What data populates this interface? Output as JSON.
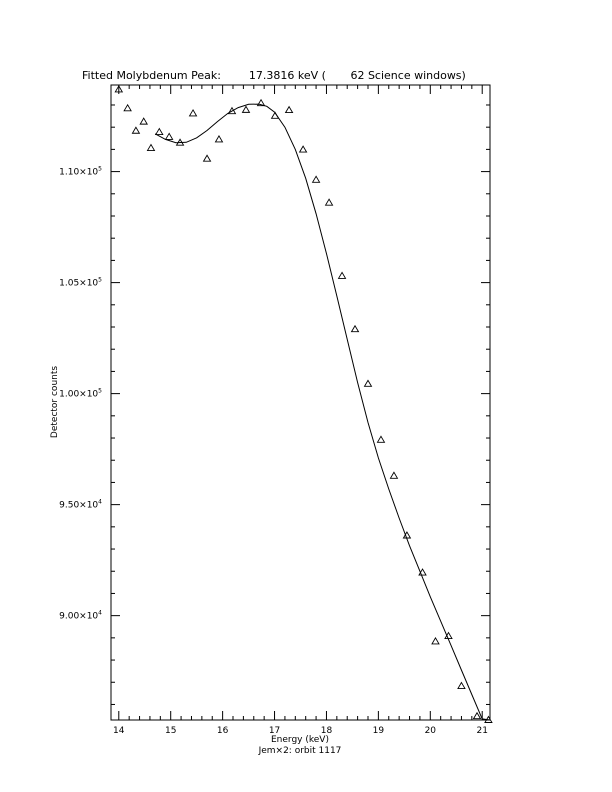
{
  "chart_data": {
    "type": "scatter",
    "title": "Fitted Molybdenum Peak:        17.3816 keV (       62 Science windows)",
    "xlabel": "Energy (keV)",
    "xlabel_sub": "Jem×2: orbit 1117",
    "ylabel": "Detector counts",
    "xlim": [
      13.85,
      21.15
    ],
    "ylim": [
      85300,
      113900
    ],
    "x_ticks": [
      {
        "value": 14,
        "label": "14"
      },
      {
        "value": 15,
        "label": "15"
      },
      {
        "value": 16,
        "label": "16"
      },
      {
        "value": 17,
        "label": "17"
      },
      {
        "value": 18,
        "label": "18"
      },
      {
        "value": 19,
        "label": "19"
      },
      {
        "value": 20,
        "label": "20"
      },
      {
        "value": 21,
        "label": "21"
      }
    ],
    "y_ticks": [
      {
        "value": 90000,
        "mantissa": "9.00×10",
        "exp": "4"
      },
      {
        "value": 95000,
        "mantissa": "9.50×10",
        "exp": "4"
      },
      {
        "value": 100000,
        "mantissa": "1.00×10",
        "exp": "5"
      },
      {
        "value": 105000,
        "mantissa": "1.05×10",
        "exp": "5"
      },
      {
        "value": 110000,
        "mantissa": "1.10×10",
        "exp": "5"
      }
    ],
    "grid": false,
    "series": [
      {
        "marker": "triangle",
        "x": [
          14.0,
          14.17,
          14.33,
          14.48,
          14.62,
          14.78,
          14.97,
          15.18,
          15.43,
          15.7,
          15.93,
          16.18,
          16.45,
          16.74,
          17.01,
          17.28,
          17.55,
          17.8,
          18.05,
          18.3,
          18.55,
          18.8,
          19.05,
          19.3,
          19.55,
          19.85,
          20.1,
          20.35,
          20.6,
          20.9,
          21.12
        ],
        "y": [
          113700,
          112850,
          111840,
          112250,
          111060,
          111780,
          111560,
          111300,
          112620,
          110580,
          111450,
          112720,
          112780,
          113080,
          112510,
          112770,
          110990,
          109630,
          108600,
          105300,
          102900,
          100440,
          97920,
          96300,
          93610,
          91940,
          88840,
          89080,
          86830,
          85470,
          85300
        ]
      },
      {
        "marker": "line",
        "x": [
          14.7,
          14.9,
          15.1,
          15.3,
          15.5,
          15.7,
          15.9,
          16.1,
          16.3,
          16.5,
          16.7,
          16.85,
          17.0,
          17.2,
          17.4,
          17.6,
          17.8,
          18.0,
          18.2,
          18.4,
          18.6,
          18.8,
          19.0,
          19.2,
          19.4,
          19.6,
          19.8,
          20.0,
          20.2,
          20.4,
          20.6,
          20.8,
          21.0,
          21.15
        ],
        "y": [
          111700,
          111450,
          111300,
          111320,
          111520,
          111850,
          112250,
          112620,
          112880,
          113030,
          113040,
          112940,
          112680,
          112000,
          111000,
          109700,
          108100,
          106300,
          104400,
          102450,
          100500,
          98700,
          97100,
          95700,
          94400,
          93150,
          92000,
          90850,
          89750,
          88650,
          87550,
          86450,
          85350,
          84500
        ]
      }
    ]
  }
}
